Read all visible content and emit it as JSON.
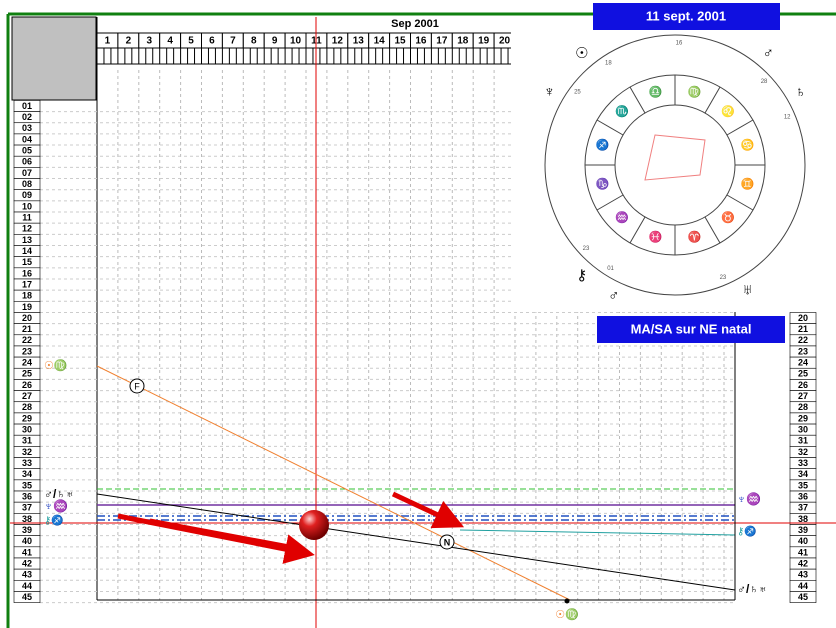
{
  "header": {
    "month": "Sep 2001",
    "days": [
      "1",
      "2",
      "3",
      "4",
      "5",
      "6",
      "7",
      "8",
      "9",
      "10",
      "11",
      "12",
      "13",
      "14",
      "15",
      "16",
      "17",
      "18",
      "19",
      "20"
    ]
  },
  "rows": [
    "01",
    "02",
    "03",
    "04",
    "05",
    "06",
    "07",
    "08",
    "09",
    "10",
    "11",
    "12",
    "13",
    "14",
    "15",
    "16",
    "17",
    "18",
    "19",
    "20",
    "21",
    "22",
    "23",
    "24",
    "25",
    "26",
    "27",
    "28",
    "29",
    "30",
    "31",
    "32",
    "33",
    "34",
    "35",
    "36",
    "37",
    "38",
    "39",
    "40",
    "41",
    "42",
    "43",
    "44",
    "45"
  ],
  "date_label": "11 sept. 2001",
  "method_label": "MA/SA sur NE natal",
  "markers": {
    "f": "F",
    "n": "N"
  },
  "glyphs": {
    "sun_virgo_top": "☉♍",
    "mars_saturn_uranus_left": "♂/♄♅",
    "neptune_aquarius_left": "♆♒",
    "chiron_sagittarius_left": "⚷♐",
    "neptune_aquarius_right": "♆♒",
    "chiron_sagittarius_right": "⚷♐",
    "mars_saturn_uranus_right": "♂/♄♅",
    "sun_virgo_bottom": "☉♍"
  },
  "wheel": {
    "signs": [
      "♍",
      "♌",
      "♋",
      "♊",
      "♉",
      "♈",
      "♓",
      "♒",
      "♑",
      "♐",
      "♏",
      "♎"
    ],
    "planets": [
      {
        "glyph": "☉",
        "deg": "18"
      },
      {
        "glyph": "♆",
        "deg": "25"
      },
      {
        "glyph": "☊",
        "deg": "16"
      },
      {
        "glyph": "♂",
        "deg": "28"
      },
      {
        "glyph": "♄",
        "deg": "12"
      },
      {
        "glyph": "⚷",
        "deg": "23"
      },
      {
        "glyph": "♂",
        "deg": "01"
      },
      {
        "glyph": "♅",
        "deg": "23"
      }
    ]
  }
}
